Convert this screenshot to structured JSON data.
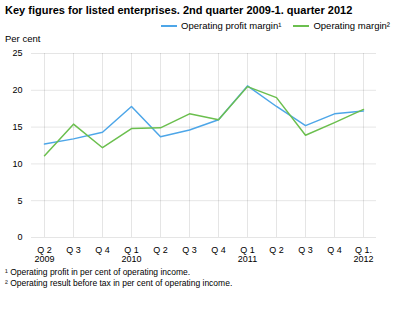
{
  "chart_data": {
    "type": "line",
    "title": "Key figures for listed enterprises. 2nd quarter 2009-1. quarter 2012",
    "ylabel": "Per cent",
    "categories": [
      "Q 2\n2009",
      "Q 3",
      "Q 4",
      "Q 1\n2010",
      "Q 2",
      "Q 3",
      "Q 4",
      "Q 1\n2011",
      "Q 2",
      "Q 3",
      "Q 4",
      "Q 1.\n2012"
    ],
    "series": [
      {
        "name": "Operating profit margin¹",
        "color": "#4da6e8",
        "values": [
          12.7,
          13.4,
          14.3,
          17.8,
          13.7,
          14.6,
          16.0,
          20.6,
          17.8,
          15.2,
          16.8,
          17.2
        ]
      },
      {
        "name": "Operating margin²",
        "color": "#6bbf4e",
        "values": [
          11.1,
          15.4,
          12.2,
          14.8,
          14.9,
          16.8,
          16.0,
          20.5,
          19.0,
          13.9,
          15.6,
          17.4
        ]
      }
    ],
    "ylim": [
      0,
      25
    ],
    "yticks": [
      0,
      5,
      10,
      15,
      20,
      25
    ],
    "grid": true,
    "legend": "upper right",
    "annotations": [
      "¹ Operating profit in per cent of operating income.",
      "² Operating result before tax in per cent of operating income."
    ]
  }
}
